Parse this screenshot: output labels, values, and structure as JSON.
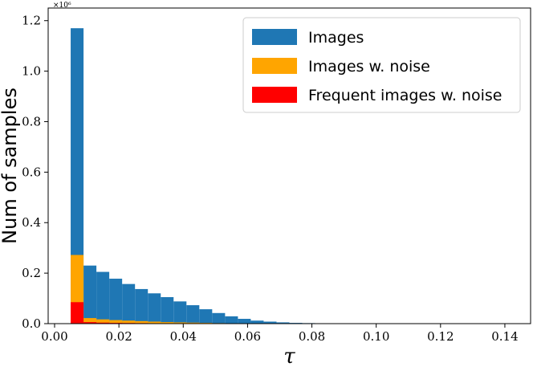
{
  "chart_data": {
    "type": "bar",
    "stacked": false,
    "xlabel": "τ",
    "ylabel": "Num of samples",
    "y_scale_label": "×10⁶",
    "xlim": [
      -0.002,
      0.148
    ],
    "ylim": [
      0.0,
      1.25
    ],
    "bin_width": 0.004,
    "x_ticks": [
      0.0,
      0.02,
      0.04,
      0.06,
      0.08,
      0.1,
      0.12,
      0.14
    ],
    "x_tick_labels": [
      "0.00",
      "0.02",
      "0.04",
      "0.06",
      "0.08",
      "0.10",
      "0.12",
      "0.14"
    ],
    "y_ticks": [
      0.0,
      0.2,
      0.4,
      0.6,
      0.8,
      1.0,
      1.2
    ],
    "y_tick_labels": [
      "0.0",
      "0.2",
      "0.4",
      "0.6",
      "0.8",
      "1.0",
      "1.2"
    ],
    "x": [
      0.005,
      0.009,
      0.013,
      0.017,
      0.021,
      0.025,
      0.029,
      0.033,
      0.037,
      0.041,
      0.045,
      0.049,
      0.053,
      0.057,
      0.061,
      0.065,
      0.069,
      0.073,
      0.077,
      0.081,
      0.085,
      0.089
    ],
    "series": [
      {
        "name": "Images",
        "color": "#1f77b4",
        "values": [
          1.17,
          0.23,
          0.205,
          0.178,
          0.157,
          0.137,
          0.12,
          0.105,
          0.088,
          0.073,
          0.057,
          0.042,
          0.029,
          0.019,
          0.012,
          0.008,
          0.005,
          0.003,
          0.002,
          0.001,
          0.001,
          0.0005
        ]
      },
      {
        "name": "Images w. noise",
        "color": "#ffa500",
        "values": [
          0.272,
          0.022,
          0.017,
          0.014,
          0.012,
          0.01,
          0.008,
          0.006,
          0.005,
          0.004,
          0.003,
          0.002,
          0.001,
          0.0008,
          0.0005,
          0.0003,
          0.0002,
          0.0001,
          0.0001,
          0.0,
          0.0,
          0.0
        ]
      },
      {
        "name": "Frequent images w. noise",
        "color": "#ff0000",
        "values": [
          0.085,
          0.006,
          0.004,
          0.003,
          0.0025,
          0.002,
          0.0015,
          0.001,
          0.0008,
          0.0006,
          0.0004,
          0.0003,
          0.0002,
          0.0001,
          0.0,
          0.0,
          0.0,
          0.0,
          0.0,
          0.0,
          0.0,
          0.0
        ]
      }
    ],
    "legend_position": "top-right",
    "grid": false
  }
}
